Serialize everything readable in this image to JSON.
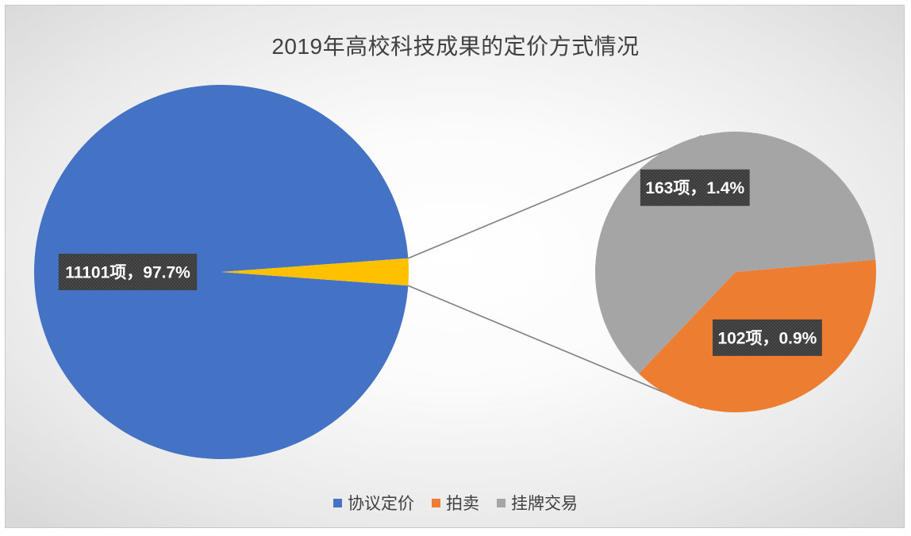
{
  "chart_data": {
    "type": "pie",
    "subtype": "pie-of-pie",
    "title": "2019年高校科技成果的定价方式情况",
    "slices": [
      {
        "name": "协议定价",
        "value": 11101,
        "percent": 97.7,
        "label": "11101项，97.7%",
        "color": "#4472C4"
      },
      {
        "name": "拍卖",
        "value": 102,
        "percent": 0.9,
        "label": "102项，0.9%",
        "color": "#ED7D31"
      },
      {
        "name": "挂牌交易",
        "value": 163,
        "percent": 1.4,
        "label": "163项，1.4%",
        "color": "#A5A5A5"
      }
    ],
    "secondary_group_color": "#FFC000",
    "legend": {
      "position": "bottom",
      "items": [
        "协议定价",
        "拍卖",
        "挂牌交易"
      ]
    }
  }
}
